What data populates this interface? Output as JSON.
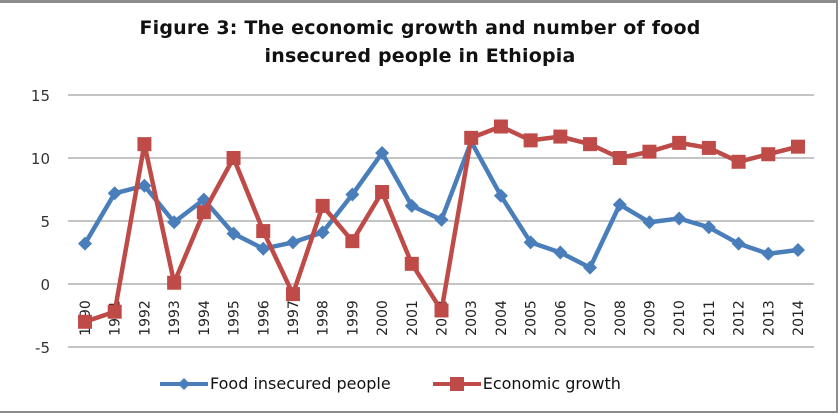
{
  "chart_data": {
    "type": "line",
    "title": "Figure  3: The economic growth and number of food insecured people in Ethiopia",
    "title_lines": [
      "Figure  3: The economic growth and number of food",
      "insecured people in Ethiopia"
    ],
    "xlabel": "",
    "ylabel": "",
    "ylim": [
      -5,
      15
    ],
    "yticks": [
      15,
      10,
      5,
      0,
      -5
    ],
    "grid": true,
    "legend_position": "bottom",
    "categories": [
      "1990",
      "1991",
      "1992",
      "1993",
      "1994",
      "1995",
      "1996",
      "1997",
      "1998",
      "1999",
      "2000",
      "2001",
      "2002",
      "2003",
      "2004",
      "2005",
      "2006",
      "2007",
      "2008",
      "2009",
      "2010",
      "2011",
      "2012",
      "2013",
      "2014"
    ],
    "series": [
      {
        "name": "Food insecured people",
        "color": "#4a7ebb",
        "marker": "diamond",
        "values": [
          3.2,
          7.2,
          7.8,
          4.9,
          6.7,
          4.0,
          2.8,
          3.3,
          4.1,
          7.1,
          10.4,
          6.2,
          5.1,
          11.3,
          7.0,
          3.3,
          2.5,
          1.3,
          6.3,
          4.9,
          5.2,
          4.5,
          3.2,
          2.4,
          2.7
        ]
      },
      {
        "name": "Economic growth",
        "color": "#be4b48",
        "marker": "square",
        "values": [
          -3.0,
          -2.2,
          11.1,
          0.1,
          5.7,
          10.0,
          4.2,
          -0.8,
          6.2,
          3.4,
          7.3,
          1.6,
          -2.1,
          11.6,
          12.5,
          11.4,
          11.7,
          11.1,
          10.0,
          10.5,
          11.2,
          10.8,
          9.7,
          10.3,
          10.9
        ]
      }
    ]
  }
}
